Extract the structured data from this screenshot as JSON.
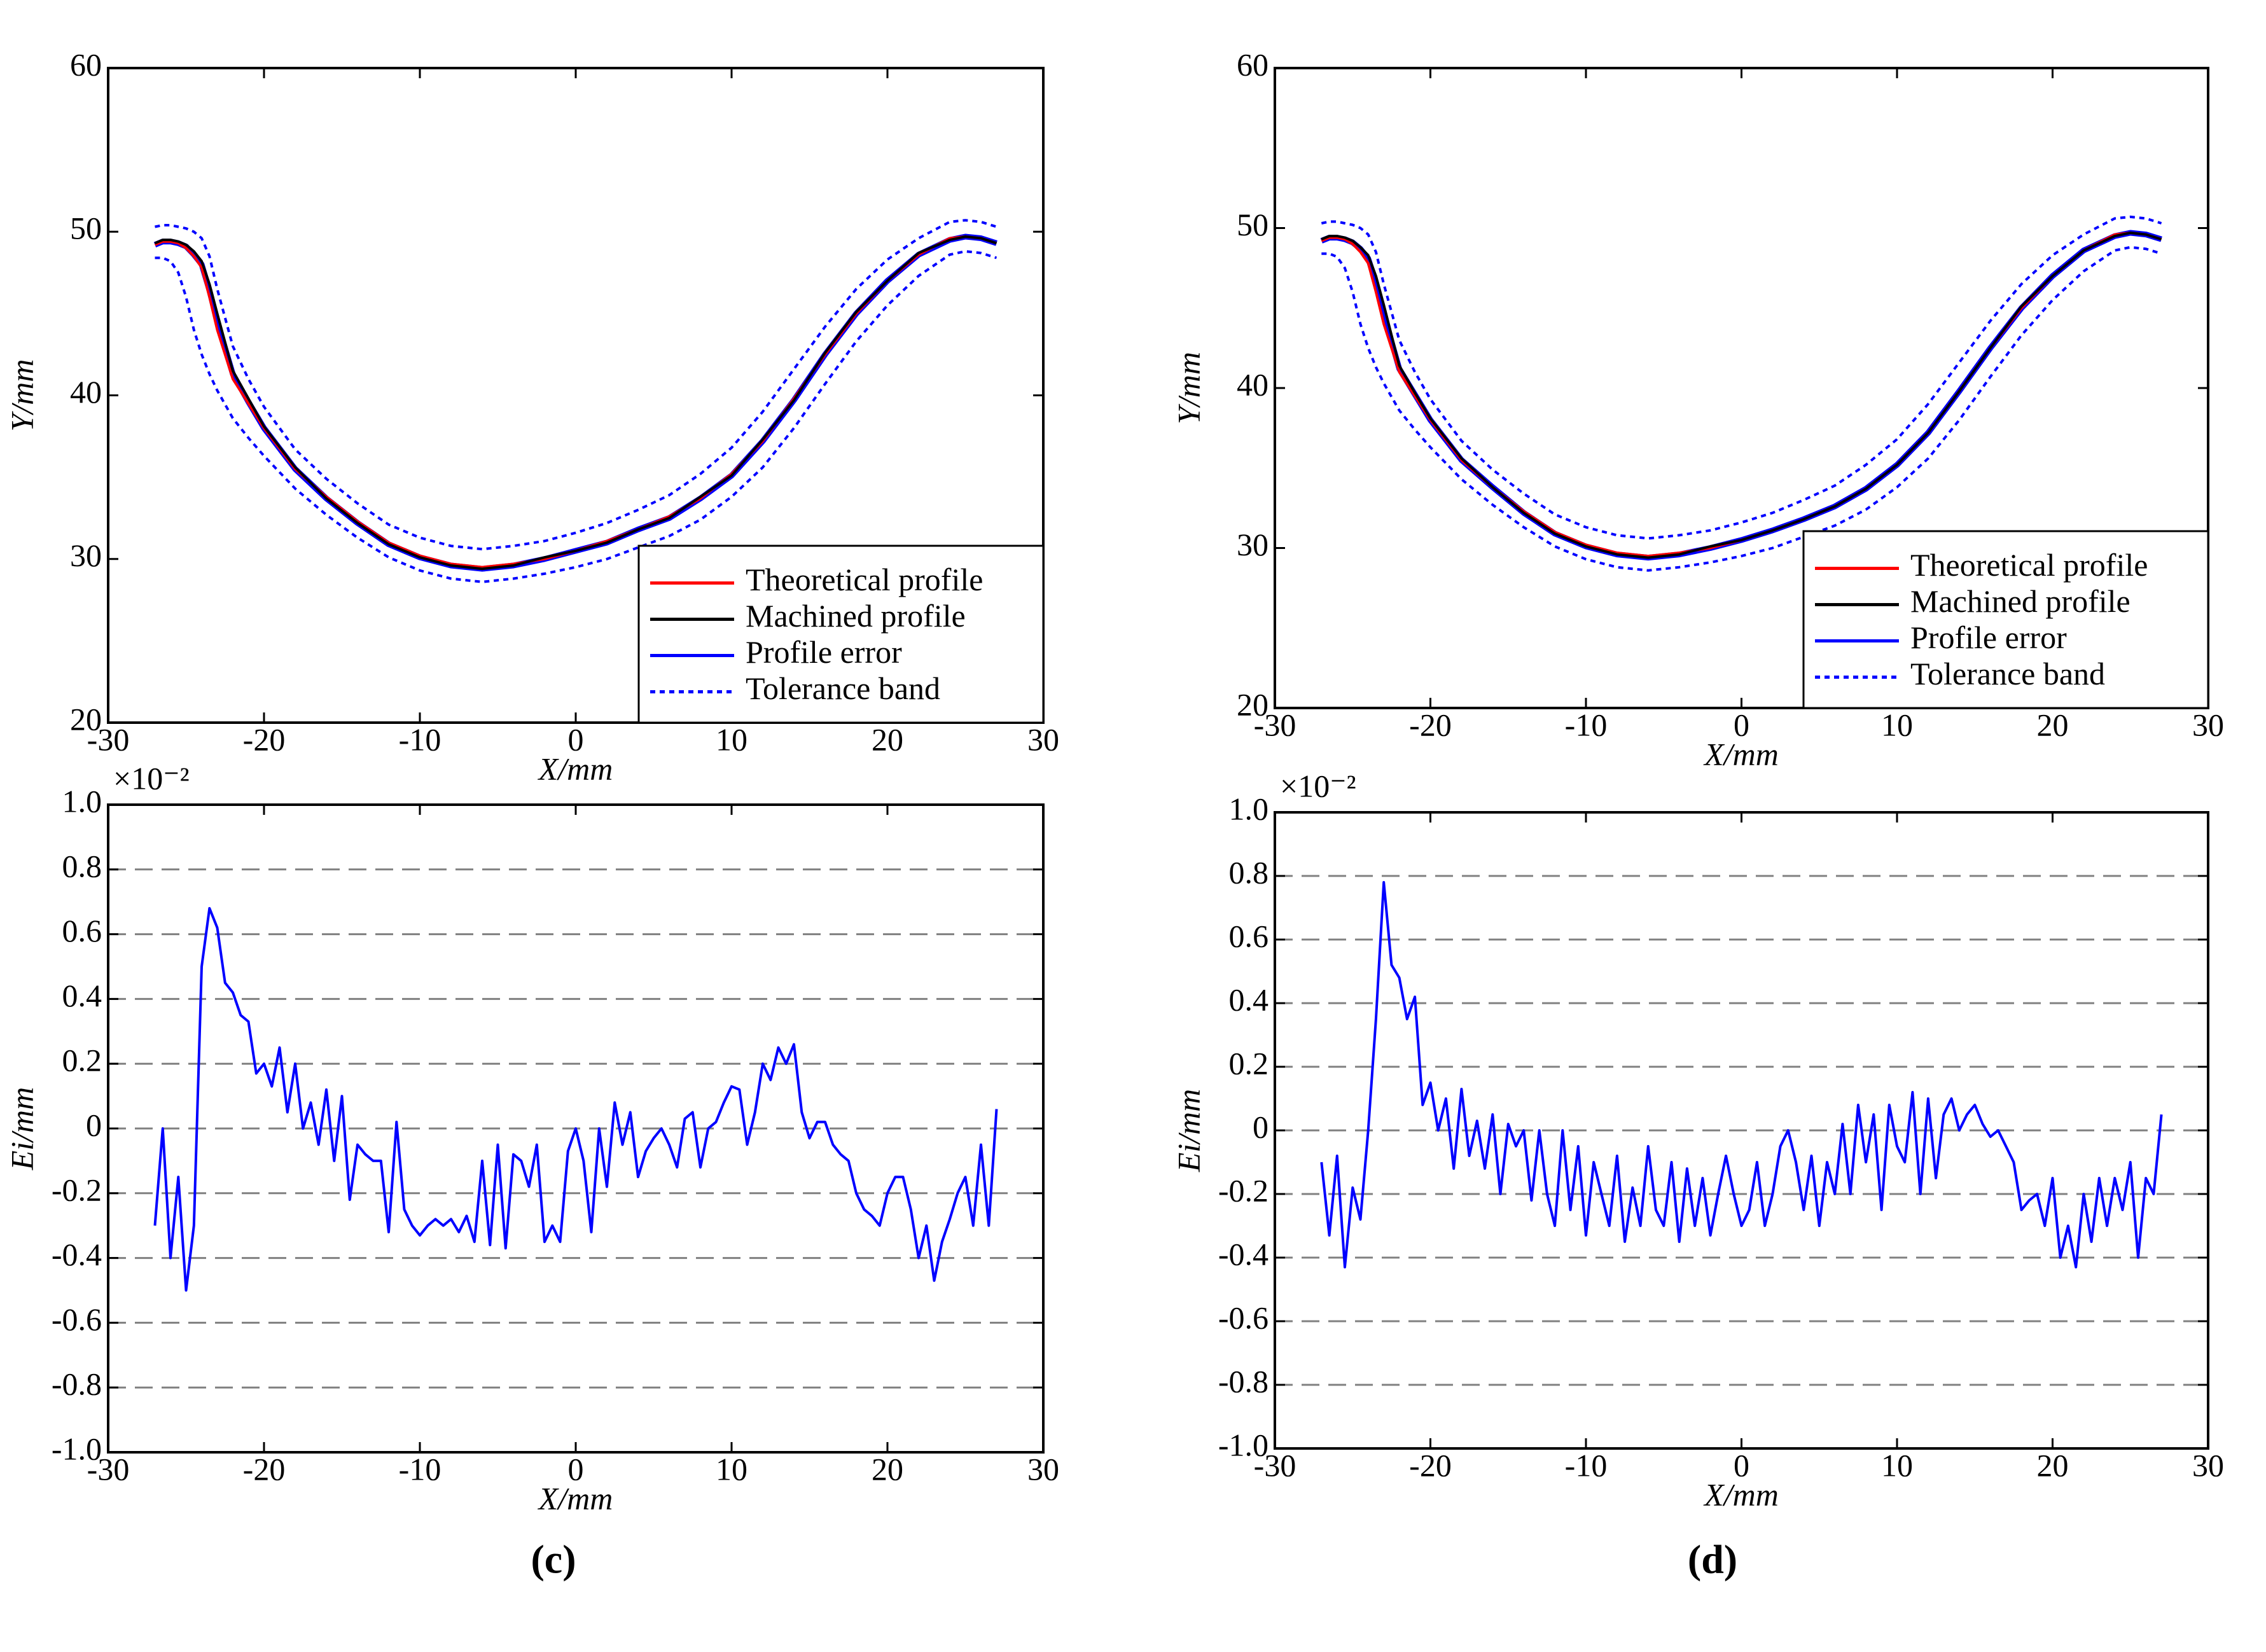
{
  "chart_data": [
    {
      "type": "line",
      "x_label": "X/mm",
      "y_label": "Y/mm",
      "xlim": [
        -30,
        30
      ],
      "ylim": [
        20,
        60
      ],
      "xticks": [
        -30,
        -20,
        -10,
        0,
        10,
        20,
        30
      ],
      "yticks": [
        20,
        30,
        40,
        50,
        60
      ],
      "grid": false,
      "legend": "lower right",
      "x": [
        -27,
        -26.5,
        -26,
        -25.5,
        -25,
        -24.5,
        -24,
        -23.5,
        -23,
        -22,
        -21,
        -20,
        -18,
        -16,
        -14,
        -12,
        -10,
        -8,
        -6,
        -4,
        -2,
        0,
        2,
        4,
        6,
        8,
        10,
        12,
        14,
        16,
        18,
        20,
        22,
        24,
        25,
        26,
        27
      ],
      "series": [
        {
          "name": "Theoretical profile",
          "color": "#ff0000",
          "dash": "solid",
          "values": [
            49.2,
            49.4,
            49.4,
            49.3,
            49,
            48.5,
            47.8,
            46,
            44,
            41,
            39.5,
            38,
            35.5,
            33.8,
            32.3,
            31,
            30.2,
            29.7,
            29.5,
            29.7,
            30,
            30.5,
            31.1,
            31.8,
            32.6,
            33.7,
            35.2,
            37.2,
            39.8,
            42.5,
            45,
            47,
            48.6,
            49.6,
            49.7,
            49.6,
            49.3
          ]
        },
        {
          "name": "Machined profile",
          "color": "#000000",
          "dash": "solid",
          "values": [
            49.3,
            49.5,
            49.5,
            49.4,
            49.2,
            48.8,
            48.2,
            46.8,
            45,
            41.5,
            39.8,
            38.1,
            35.6,
            33.7,
            32.2,
            30.9,
            30.1,
            29.6,
            29.4,
            29.6,
            30.1,
            30.5,
            31,
            31.8,
            32.5,
            33.8,
            35.1,
            37.3,
            39.7,
            42.6,
            45.1,
            47,
            48.7,
            49.5,
            49.7,
            49.6,
            49.3
          ]
        },
        {
          "name": "Profile error",
          "color": "#0000ff",
          "dash": "solid",
          "values": [
            49.2,
            49.4,
            49.4,
            49.3,
            49.1,
            48.6,
            48,
            46.4,
            44.5,
            41.3,
            39.6,
            38,
            35.5,
            33.7,
            32.2,
            30.9,
            30.1,
            29.6,
            29.4,
            29.6,
            30,
            30.5,
            31,
            31.8,
            32.5,
            33.7,
            35.1,
            37.2,
            39.7,
            42.5,
            45,
            47,
            48.6,
            49.5,
            49.7,
            49.6,
            49.3
          ]
        },
        {
          "name": "Tolerance band",
          "color": "#0000ff",
          "dash": "dotted",
          "values": [
            50.3,
            50.4,
            50.4,
            50.3,
            50.2,
            50,
            49.6,
            48.5,
            46.5,
            43,
            41,
            39.3,
            36.7,
            34.9,
            33.4,
            32.1,
            31.3,
            30.8,
            30.6,
            30.8,
            31.1,
            31.6,
            32.2,
            33,
            33.9,
            35.2,
            36.8,
            39,
            41.6,
            44.2,
            46.5,
            48.3,
            49.6,
            50.6,
            50.7,
            50.6,
            50.3
          ],
          "lower": [
            48.4,
            48.4,
            48.2,
            47.5,
            46,
            44,
            42.5,
            41.3,
            40.3,
            38.6,
            37.4,
            36.3,
            34.3,
            32.7,
            31.3,
            30.1,
            29.3,
            28.8,
            28.6,
            28.8,
            29.1,
            29.5,
            30,
            30.7,
            31.4,
            32.4,
            33.8,
            35.6,
            38,
            40.7,
            43.3,
            45.5,
            47.3,
            48.6,
            48.8,
            48.7,
            48.4
          ]
        }
      ]
    },
    {
      "type": "line",
      "x_label": "X/mm",
      "y_label": "Ei/mm",
      "multiplier": "×10⁻²",
      "xlim": [
        -30,
        30
      ],
      "ylim": [
        -1,
        1
      ],
      "xticks": [
        -30,
        -20,
        -10,
        0,
        10,
        20,
        30
      ],
      "yticks": [
        {
          "value": -1,
          "label": "-1.0"
        },
        -0.8,
        -0.6,
        -0.4,
        -0.2,
        0,
        0.2,
        0.4,
        0.6,
        0.8,
        {
          "value": 1,
          "label": "1.0"
        }
      ],
      "grid": true,
      "x": [
        -27,
        -26.5,
        -26,
        -25.5,
        -25,
        -24.5,
        -24,
        -23.5,
        -23,
        -22.5,
        -22,
        -21.5,
        -21,
        -20.5,
        -20,
        -19.5,
        -19,
        -18.5,
        -18,
        -17.5,
        -17,
        -16.5,
        -16,
        -15.5,
        -15,
        -14.5,
        -14,
        -13.5,
        -13,
        -12.5,
        -12,
        -11.5,
        -11,
        -10.5,
        -10,
        -9.5,
        -9,
        -8.5,
        -8,
        -7.5,
        -7,
        -6.5,
        -6,
        -5.5,
        -5,
        -4.5,
        -4,
        -3.5,
        -3,
        -2.5,
        -2,
        -1.5,
        -1,
        -0.5,
        0,
        0.5,
        1,
        1.5,
        2,
        2.5,
        3,
        3.5,
        4,
        4.5,
        5,
        5.5,
        6,
        6.5,
        7,
        7.5,
        8,
        8.5,
        9,
        9.5,
        10,
        10.5,
        11,
        11.5,
        12,
        12.5,
        13,
        13.5,
        14,
        14.5,
        15,
        15.5,
        16,
        16.5,
        17,
        17.5,
        18,
        18.5,
        19,
        19.5,
        20,
        20.5,
        21,
        21.5,
        22,
        22.5,
        23,
        23.5,
        24,
        24.5,
        25,
        25.5,
        26,
        26.5,
        27
      ],
      "series": [
        {
          "name": "Profile error",
          "color": "#0000ff",
          "dash": "solid",
          "values": [
            -0.3,
            0,
            -0.4,
            -0.15,
            -0.5,
            -0.3,
            0.5,
            0.68,
            0.62,
            0.45,
            0.42,
            0.35,
            0.33,
            0.17,
            0.2,
            0.13,
            0.25,
            0.05,
            0.2,
            0,
            0.08,
            -0.05,
            0.12,
            -0.1,
            0.1,
            -0.22,
            -0.05,
            -0.08,
            -0.1,
            -0.1,
            -0.32,
            0.02,
            -0.25,
            -0.3,
            -0.33,
            -0.3,
            -0.28,
            -0.3,
            -0.28,
            -0.32,
            -0.27,
            -0.35,
            -0.1,
            -0.36,
            -0.05,
            -0.37,
            -0.08,
            -0.1,
            -0.18,
            -0.05,
            -0.35,
            -0.3,
            -0.35,
            -0.07,
            0,
            -0.1,
            -0.32,
            0,
            -0.18,
            0.08,
            -0.05,
            0.05,
            -0.15,
            -0.07,
            -0.03,
            0,
            -0.05,
            -0.12,
            0.03,
            0.05,
            -0.12,
            0,
            0.02,
            0.08,
            0.13,
            0.12,
            -0.05,
            0.05,
            0.2,
            0.15,
            0.25,
            0.2,
            0.26,
            0.05,
            -0.03,
            0.02,
            0.02,
            -0.05,
            -0.08,
            -0.1,
            -0.2,
            -0.25,
            -0.27,
            -0.3,
            -0.2,
            -0.15,
            -0.15,
            -0.25,
            -0.4,
            -0.3,
            -0.47,
            -0.35,
            -0.28,
            -0.2,
            -0.15,
            -0.3,
            -0.05,
            -0.3,
            0.06
          ]
        }
      ]
    },
    {
      "type": "line",
      "x_label": "X/mm",
      "y_label": "Y/mm",
      "xlim": [
        -30,
        30
      ],
      "ylim": [
        20,
        60
      ],
      "xticks": [
        -30,
        -20,
        -10,
        0,
        10,
        20,
        30
      ],
      "yticks": [
        20,
        30,
        40,
        50,
        60
      ],
      "grid": false,
      "legend": "lower right",
      "x": [
        -27,
        -26.5,
        -26,
        -25.5,
        -25,
        -24.5,
        -24,
        -23.5,
        -23,
        -22,
        -21,
        -20,
        -18,
        -16,
        -14,
        -12,
        -10,
        -8,
        -6,
        -4,
        -2,
        0,
        2,
        4,
        6,
        8,
        10,
        12,
        14,
        16,
        18,
        20,
        22,
        24,
        25,
        26,
        27
      ],
      "series": [
        {
          "name": "Theoretical profile",
          "color": "#ff0000",
          "dash": "solid",
          "values": [
            49.2,
            49.4,
            49.4,
            49.3,
            49,
            48.5,
            47.8,
            46,
            44,
            41,
            39.5,
            38,
            35.5,
            33.8,
            32.3,
            31,
            30.2,
            29.7,
            29.5,
            29.7,
            30,
            30.5,
            31.1,
            31.8,
            32.6,
            33.7,
            35.2,
            37.2,
            39.8,
            42.5,
            45,
            47,
            48.6,
            49.6,
            49.7,
            49.6,
            49.3
          ]
        },
        {
          "name": "Machined profile",
          "color": "#000000",
          "dash": "solid",
          "values": [
            49.3,
            49.5,
            49.5,
            49.4,
            49.2,
            48.8,
            48.3,
            47,
            45.2,
            41.4,
            39.7,
            38.1,
            35.6,
            33.8,
            32.2,
            30.9,
            30.1,
            29.6,
            29.4,
            29.6,
            30.1,
            30.5,
            31.1,
            31.8,
            32.6,
            33.7,
            35.2,
            37.2,
            39.8,
            42.5,
            45.1,
            47,
            48.6,
            49.5,
            49.7,
            49.6,
            49.3
          ]
        },
        {
          "name": "Profile error",
          "color": "#0000ff",
          "dash": "solid",
          "values": [
            49.2,
            49.4,
            49.4,
            49.3,
            49.1,
            48.7,
            48.1,
            46.6,
            44.6,
            41.2,
            39.6,
            38,
            35.5,
            33.8,
            32.2,
            30.9,
            30.1,
            29.6,
            29.4,
            29.6,
            30,
            30.5,
            31.1,
            31.8,
            32.6,
            33.7,
            35.2,
            37.2,
            39.8,
            42.5,
            45,
            47,
            48.6,
            49.5,
            49.7,
            49.6,
            49.3
          ]
        },
        {
          "name": "Tolerance band",
          "color": "#0000ff",
          "dash": "dotted",
          "values": [
            50.3,
            50.4,
            50.4,
            50.3,
            50.2,
            50,
            49.6,
            48.5,
            46.5,
            43,
            41,
            39.3,
            36.7,
            34.9,
            33.4,
            32.1,
            31.3,
            30.8,
            30.6,
            30.8,
            31.1,
            31.6,
            32.2,
            33,
            33.9,
            35.2,
            36.8,
            39,
            41.6,
            44.2,
            46.5,
            48.3,
            49.6,
            50.6,
            50.7,
            50.6,
            50.3
          ],
          "lower": [
            48.4,
            48.4,
            48.2,
            47.5,
            46,
            44,
            42.5,
            41.3,
            40.3,
            38.6,
            37.4,
            36.3,
            34.3,
            32.7,
            31.3,
            30.1,
            29.3,
            28.8,
            28.6,
            28.8,
            29.1,
            29.5,
            30,
            30.7,
            31.4,
            32.4,
            33.8,
            35.6,
            38,
            40.7,
            43.3,
            45.5,
            47.3,
            48.6,
            48.8,
            48.7,
            48.4
          ]
        }
      ]
    },
    {
      "type": "line",
      "x_label": "X/mm",
      "y_label": "Ei/mm",
      "multiplier": "×10⁻²",
      "xlim": [
        -30,
        30
      ],
      "ylim": [
        -1,
        1
      ],
      "xticks": [
        -30,
        -20,
        -10,
        0,
        10,
        20,
        30
      ],
      "yticks": [
        {
          "value": -1,
          "label": "-1.0"
        },
        -0.8,
        -0.6,
        -0.4,
        -0.2,
        0,
        0.2,
        0.4,
        0.6,
        0.8,
        {
          "value": 1,
          "label": "1.0"
        }
      ],
      "grid": true,
      "x": [
        -27,
        -26.5,
        -26,
        -25.5,
        -25,
        -24.5,
        -24,
        -23.5,
        -23,
        -22.5,
        -22,
        -21.5,
        -21,
        -20.5,
        -20,
        -19.5,
        -19,
        -18.5,
        -18,
        -17.5,
        -17,
        -16.5,
        -16,
        -15.5,
        -15,
        -14.5,
        -14,
        -13.5,
        -13,
        -12.5,
        -12,
        -11.5,
        -11,
        -10.5,
        -10,
        -9.5,
        -9,
        -8.5,
        -8,
        -7.5,
        -7,
        -6.5,
        -6,
        -5.5,
        -5,
        -4.5,
        -4,
        -3.5,
        -3,
        -2.5,
        -2,
        -1.5,
        -1,
        -0.5,
        0,
        0.5,
        1,
        1.5,
        2,
        2.5,
        3,
        3.5,
        4,
        4.5,
        5,
        5.5,
        6,
        6.5,
        7,
        7.5,
        8,
        8.5,
        9,
        9.5,
        10,
        10.5,
        11,
        11.5,
        12,
        12.5,
        13,
        13.5,
        14,
        14.5,
        15,
        15.5,
        16,
        16.5,
        17,
        17.5,
        18,
        18.5,
        19,
        19.5,
        20,
        20.5,
        21,
        21.5,
        22,
        22.5,
        23,
        23.5,
        24,
        24.5,
        25,
        25.5,
        26,
        26.5,
        27
      ],
      "series": [
        {
          "name": "Profile error",
          "color": "#0000ff",
          "dash": "solid",
          "values": [
            -0.1,
            -0.33,
            -0.08,
            -0.43,
            -0.18,
            -0.28,
            0,
            0.35,
            0.78,
            0.52,
            0.48,
            0.35,
            0.42,
            0.08,
            0.15,
            0,
            0.1,
            -0.12,
            0.13,
            -0.08,
            0.03,
            -0.12,
            0.05,
            -0.2,
            0.02,
            -0.05,
            0,
            -0.22,
            0,
            -0.2,
            -0.3,
            0,
            -0.25,
            -0.05,
            -0.33,
            -0.1,
            -0.2,
            -0.3,
            -0.08,
            -0.35,
            -0.18,
            -0.3,
            -0.05,
            -0.25,
            -0.3,
            -0.1,
            -0.35,
            -0.12,
            -0.3,
            -0.15,
            -0.33,
            -0.2,
            -0.08,
            -0.2,
            -0.3,
            -0.25,
            -0.1,
            -0.3,
            -0.2,
            -0.05,
            0,
            -0.1,
            -0.25,
            -0.08,
            -0.3,
            -0.1,
            -0.2,
            0.02,
            -0.2,
            0.08,
            -0.1,
            0.05,
            -0.25,
            0.08,
            -0.05,
            -0.1,
            0.12,
            -0.2,
            0.1,
            -0.15,
            0.05,
            0.1,
            0,
            0.05,
            0.08,
            0.02,
            -0.02,
            0,
            -0.05,
            -0.1,
            -0.25,
            -0.22,
            -0.2,
            -0.3,
            -0.15,
            -0.4,
            -0.3,
            -0.43,
            -0.2,
            -0.35,
            -0.15,
            -0.3,
            -0.15,
            -0.25,
            -0.1,
            -0.4,
            -0.15,
            -0.2,
            0.05
          ]
        }
      ]
    }
  ],
  "panel_labels": [
    "(c)",
    "(d)"
  ]
}
